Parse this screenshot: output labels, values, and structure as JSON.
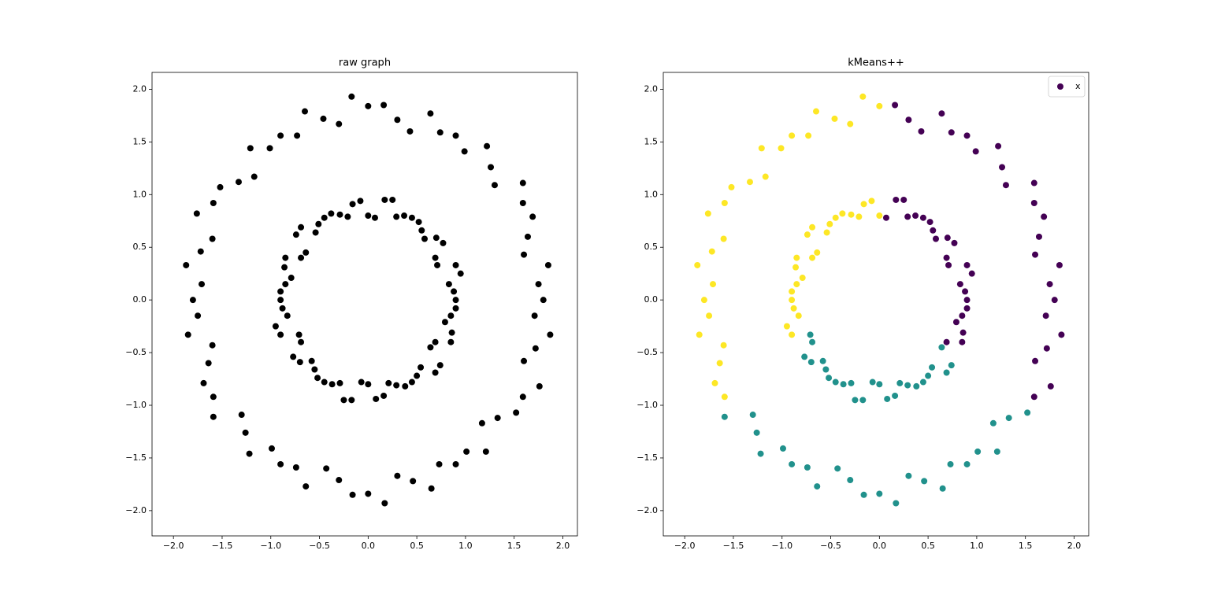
{
  "chart_data": [
    {
      "type": "scatter",
      "title": "raw graph",
      "xlim": [
        -2.22,
        2.15
      ],
      "ylim": [
        -2.24,
        2.16
      ],
      "xticks": [
        {
          "value": -2.0,
          "label": "−2.0"
        },
        {
          "value": -1.5,
          "label": "−1.5"
        },
        {
          "value": -1.0,
          "label": "−1.0"
        },
        {
          "value": -0.5,
          "label": "−0.5"
        },
        {
          "value": 0.0,
          "label": "0.0"
        },
        0.5,
        {
          "value": 1.0,
          "label": "1.0"
        },
        1.5,
        {
          "value": 2.0,
          "label": "2.0"
        }
      ],
      "yticks": [
        {
          "value": -2.0,
          "label": "−2.0"
        },
        {
          "value": -1.5,
          "label": "−1.5"
        },
        {
          "value": -1.0,
          "label": "−1.0"
        },
        {
          "value": -0.5,
          "label": "−0.5"
        },
        {
          "value": 0.0,
          "label": "0.0"
        },
        0.5,
        {
          "value": 1.0,
          "label": "1.0"
        },
        1.5,
        {
          "value": 2.0,
          "label": "2.0"
        }
      ],
      "series": [
        {
          "color": "#000000",
          "x": [
            1.8,
            1.85,
            1.64,
            1.59,
            1.3,
            1.22,
            0.9,
            0.64,
            0.3,
            1.59,
            1.6,
            1.87,
            1.75,
            1.6,
            1.69,
            1.59,
            1.26,
            0.99,
            0.74,
            0.43,
            0.16,
            1.76,
            1.72,
            1.71,
            0.9,
            0.83,
            0.9,
            0.69,
            0.7,
            0.55,
            0.45,
            0.29,
            0.17,
            0.69,
            0.86,
            0.85,
            0.88,
            0.95,
            0.71,
            0.77,
            0.58,
            0.52,
            0.37,
            0.25,
            0.07,
            0.85,
            0.79,
            0.9,
            0,
            -0.3,
            -0.65,
            -0.9,
            -1.21,
            -1.33,
            -1.59,
            -1.6,
            -1.87,
            -1.8,
            -1.85,
            -1.64,
            -1.59,
            -0.17,
            -0.46,
            -0.73,
            -1.01,
            -1.17,
            -1.52,
            -1.76,
            -1.72,
            -1.71,
            -1.75,
            -1.6,
            -1.69,
            0,
            -0.16,
            -0.29,
            -0.45,
            -0.54,
            -0.74,
            -0.69,
            -0.86,
            -0.85,
            -0.9,
            -0.83,
            -0.9,
            -0.08,
            -0.21,
            -0.38,
            -0.51,
            -0.69,
            -0.64,
            -0.85,
            -0.79,
            -0.9,
            -0.88,
            -0.95,
            -1.3,
            -1.22,
            -0.9,
            -0.64,
            -0.3,
            0,
            0.3,
            0.65,
            0.9,
            1.21,
            1.33,
            -1.59,
            -1.26,
            -0.99,
            -0.74,
            -0.43,
            -0.16,
            0.17,
            0.46,
            0.73,
            1.01,
            1.17,
            1.52,
            -0.69,
            -0.7,
            -0.55,
            -0.45,
            -0.29,
            -0.17,
            0,
            0.16,
            0.29,
            0.45,
            0.54,
            0.74,
            -0.71,
            -0.77,
            -0.58,
            -0.52,
            -0.37,
            -0.25,
            -0.07,
            0.08,
            0.21,
            0.38,
            0.5,
            0.69,
            0.64
          ],
          "y": [
            0,
            0.33,
            0.6,
            0.92,
            1.09,
            1.46,
            1.56,
            1.77,
            1.71,
            -0.92,
            -0.58,
            -0.33,
            0.15,
            0.43,
            0.79,
            1.11,
            1.26,
            1.41,
            1.59,
            1.6,
            1.85,
            -0.82,
            -0.46,
            -0.15,
            0,
            0.15,
            0.33,
            0.4,
            0.59,
            0.66,
            0.78,
            0.79,
            0.95,
            -0.4,
            -0.31,
            -0.15,
            0.08,
            0.25,
            0.33,
            0.54,
            0.58,
            0.74,
            0.8,
            0.95,
            0.78,
            -0.4,
            -0.21,
            -0.08,
            1.84,
            1.67,
            1.79,
            1.56,
            1.44,
            1.12,
            0.92,
            0.58,
            0.33,
            0,
            -0.33,
            -0.6,
            -0.92,
            1.93,
            1.72,
            1.56,
            1.44,
            1.17,
            1.07,
            0.82,
            0.46,
            0.15,
            -0.15,
            -0.43,
            -0.79,
            0.8,
            0.91,
            0.81,
            0.78,
            0.64,
            0.62,
            0.4,
            0.31,
            0.15,
            0,
            -0.15,
            -0.33,
            0.94,
            0.79,
            0.82,
            0.72,
            0.69,
            0.45,
            0.4,
            0.21,
            0.08,
            -0.08,
            -0.25,
            -1.09,
            -1.46,
            -1.56,
            -1.77,
            -1.71,
            -1.84,
            -1.67,
            -1.79,
            -1.56,
            -1.44,
            -1.12,
            -1.11,
            -1.26,
            -1.41,
            -1.59,
            -1.6,
            -1.85,
            -1.93,
            -1.72,
            -1.56,
            -1.44,
            -1.17,
            -1.07,
            -0.4,
            -0.59,
            -0.66,
            -0.78,
            -0.79,
            -0.95,
            -0.8,
            -0.91,
            -0.81,
            -0.78,
            -0.64,
            -0.62,
            -0.33,
            -0.54,
            -0.58,
            -0.74,
            -0.8,
            -0.95,
            -0.78,
            -0.94,
            -0.79,
            -0.82,
            -0.72,
            -0.69,
            -0.45
          ]
        }
      ]
    },
    {
      "type": "scatter",
      "title": "kMeans++",
      "legend": "upper right",
      "xlim": [
        -2.22,
        2.15
      ],
      "ylim": [
        -2.24,
        2.16
      ],
      "xticks": [
        {
          "value": -2.0,
          "label": "−2.0"
        },
        {
          "value": -1.5,
          "label": "−1.5"
        },
        {
          "value": -1.0,
          "label": "−1.0"
        },
        {
          "value": -0.5,
          "label": "−0.5"
        },
        {
          "value": 0.0,
          "label": "0.0"
        },
        0.5,
        {
          "value": 1.0,
          "label": "1.0"
        },
        1.5,
        {
          "value": 2.0,
          "label": "2.0"
        }
      ],
      "yticks": [
        {
          "value": -2.0,
          "label": "−2.0"
        },
        {
          "value": -1.5,
          "label": "−1.5"
        },
        {
          "value": -1.0,
          "label": "−1.0"
        },
        {
          "value": -0.5,
          "label": "−0.5"
        },
        {
          "value": 0.0,
          "label": "0.0"
        },
        0.5,
        {
          "value": 1.0,
          "label": "1.0"
        },
        1.5,
        {
          "value": 2.0,
          "label": "2.0"
        }
      ],
      "series": [
        {
          "name": "x",
          "color": "#440154",
          "x": [
            1.8,
            1.85,
            1.64,
            1.59,
            1.3,
            1.22,
            0.9,
            0.64,
            0.3,
            1.59,
            1.6,
            1.87,
            1.75,
            1.6,
            1.69,
            1.59,
            1.26,
            0.99,
            0.74,
            0.43,
            0.16,
            1.76,
            1.72,
            1.71,
            0.9,
            0.83,
            0.9,
            0.69,
            0.7,
            0.55,
            0.45,
            0.29,
            0.17,
            0.69,
            0.86,
            0.85,
            0.88,
            0.95,
            0.71,
            0.77,
            0.58,
            0.52,
            0.37,
            0.25,
            0.07,
            0.85,
            0.79,
            0.9
          ],
          "y": [
            0,
            0.33,
            0.6,
            0.92,
            1.09,
            1.46,
            1.56,
            1.77,
            1.71,
            -0.92,
            -0.58,
            -0.33,
            0.15,
            0.43,
            0.79,
            1.11,
            1.26,
            1.41,
            1.59,
            1.6,
            1.85,
            -0.82,
            -0.46,
            -0.15,
            0,
            0.15,
            0.33,
            0.4,
            0.59,
            0.66,
            0.78,
            0.79,
            0.95,
            -0.4,
            -0.31,
            -0.15,
            0.08,
            0.25,
            0.33,
            0.54,
            0.58,
            0.74,
            0.8,
            0.95,
            0.78,
            -0.4,
            -0.21,
            -0.08
          ]
        },
        {
          "color": "#fde725",
          "x": [
            0,
            -0.3,
            -0.65,
            -0.9,
            -1.21,
            -1.33,
            -1.59,
            -1.6,
            -1.87,
            -1.8,
            -1.85,
            -1.64,
            -1.59,
            -0.17,
            -0.46,
            -0.73,
            -1.01,
            -1.17,
            -1.52,
            -1.76,
            -1.72,
            -1.71,
            -1.75,
            -1.6,
            -1.69,
            0,
            -0.16,
            -0.29,
            -0.45,
            -0.54,
            -0.74,
            -0.69,
            -0.86,
            -0.85,
            -0.9,
            -0.83,
            -0.9,
            -0.08,
            -0.21,
            -0.38,
            -0.51,
            -0.69,
            -0.64,
            -0.85,
            -0.79,
            -0.9,
            -0.88,
            -0.95
          ],
          "y": [
            1.84,
            1.67,
            1.79,
            1.56,
            1.44,
            1.12,
            0.92,
            0.58,
            0.33,
            0,
            -0.33,
            -0.6,
            -0.92,
            1.93,
            1.72,
            1.56,
            1.44,
            1.17,
            1.07,
            0.82,
            0.46,
            0.15,
            -0.15,
            -0.43,
            -0.79,
            0.8,
            0.91,
            0.81,
            0.78,
            0.64,
            0.62,
            0.4,
            0.31,
            0.15,
            0,
            -0.15,
            -0.33,
            0.94,
            0.79,
            0.82,
            0.72,
            0.69,
            0.45,
            0.4,
            0.21,
            0.08,
            -0.08,
            -0.25
          ]
        },
        {
          "color": "#21918c",
          "x": [
            -1.3,
            -1.22,
            -0.9,
            -0.64,
            -0.3,
            0,
            0.3,
            0.65,
            0.9,
            1.21,
            1.33,
            -1.59,
            -1.26,
            -0.99,
            -0.74,
            -0.43,
            -0.16,
            0.17,
            0.46,
            0.73,
            1.01,
            1.17,
            1.52,
            -0.69,
            -0.7,
            -0.55,
            -0.45,
            -0.29,
            -0.17,
            0,
            0.16,
            0.29,
            0.45,
            0.54,
            0.74,
            -0.71,
            -0.77,
            -0.58,
            -0.52,
            -0.37,
            -0.25,
            -0.07,
            0.08,
            0.21,
            0.38,
            0.5,
            0.69,
            0.64
          ],
          "y": [
            -1.09,
            -1.46,
            -1.56,
            -1.77,
            -1.71,
            -1.84,
            -1.67,
            -1.79,
            -1.56,
            -1.44,
            -1.12,
            -1.11,
            -1.26,
            -1.41,
            -1.59,
            -1.6,
            -1.85,
            -1.93,
            -1.72,
            -1.56,
            -1.44,
            -1.17,
            -1.07,
            -0.4,
            -0.59,
            -0.66,
            -0.78,
            -0.79,
            -0.95,
            -0.8,
            -0.91,
            -0.81,
            -0.78,
            -0.64,
            -0.62,
            -0.33,
            -0.54,
            -0.58,
            -0.74,
            -0.8,
            -0.95,
            -0.78,
            -0.94,
            -0.79,
            -0.82,
            -0.72,
            -0.69,
            -0.45
          ]
        }
      ]
    }
  ]
}
